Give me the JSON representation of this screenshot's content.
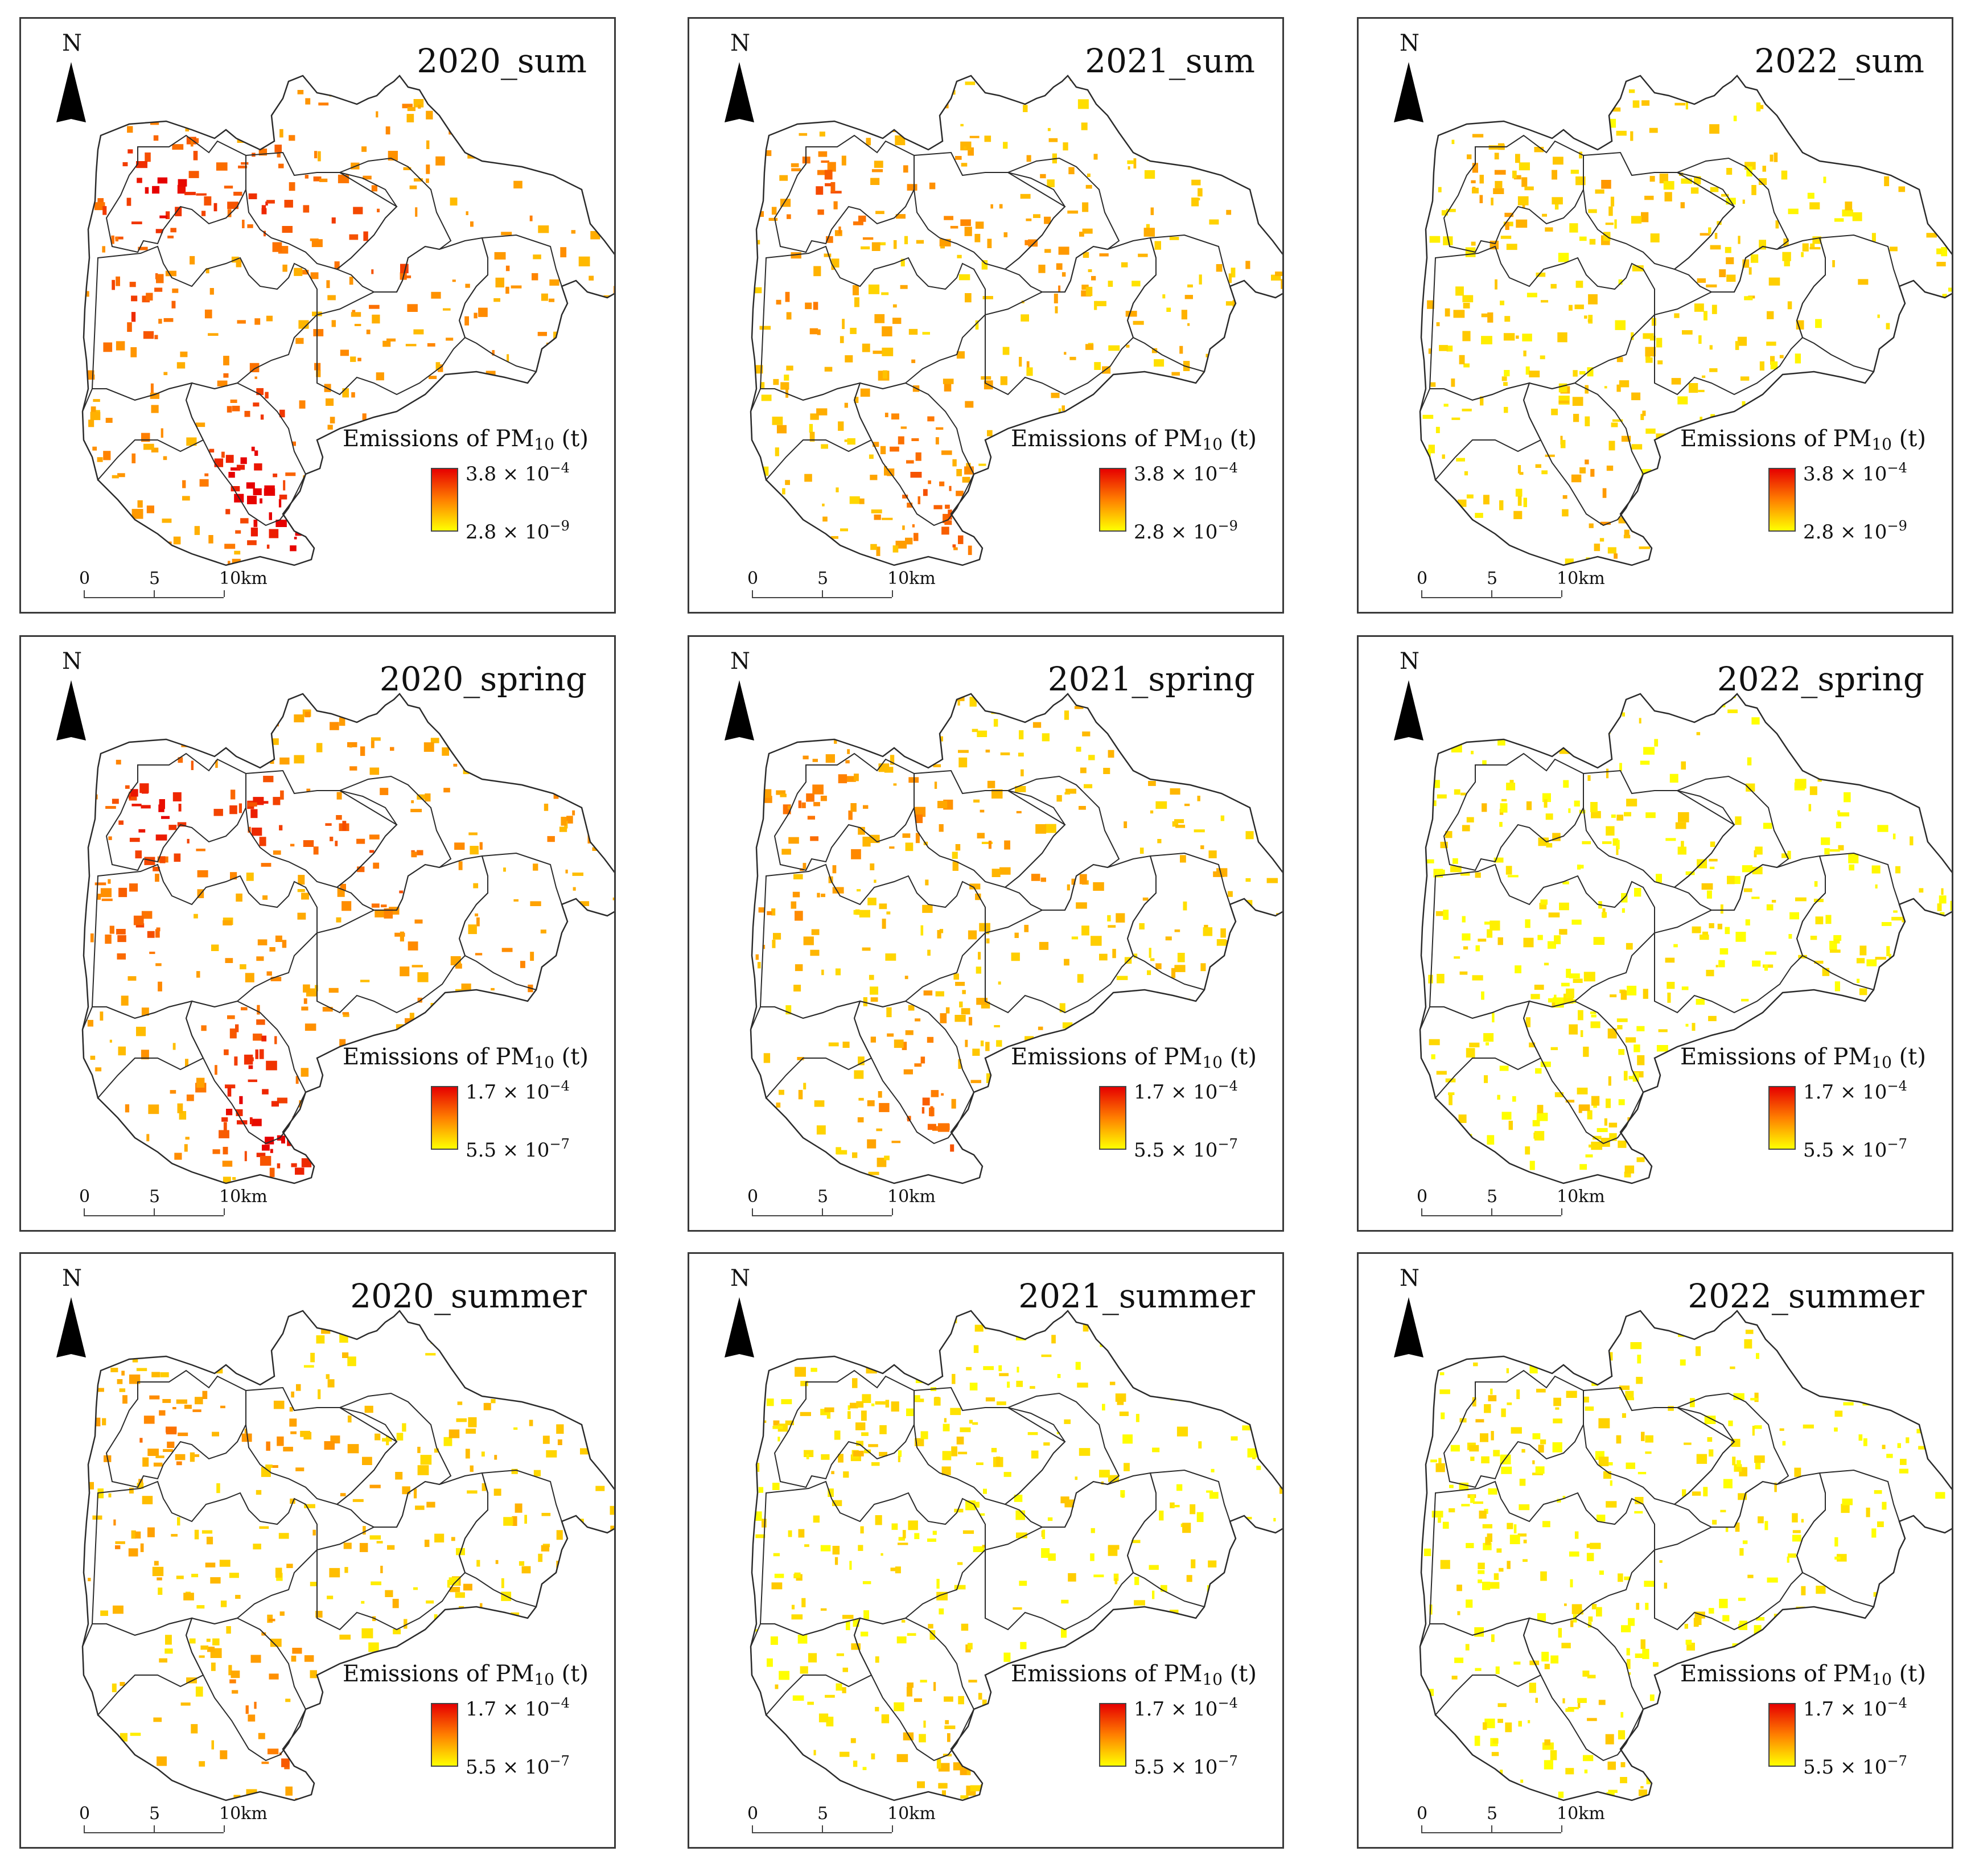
{
  "figure": {
    "legend_title_prefix": "Emissions of PM",
    "legend_title_subscript": "10",
    "legend_title_suffix": " (t)",
    "north_label": "N",
    "scale_labels": [
      "0",
      "5",
      "10km"
    ],
    "color_ramp": {
      "high": "#e60000",
      "mid": "#ff7f00",
      "low": "#ffff00"
    },
    "boundary_color": "#2b2b2b"
  },
  "panels": [
    {
      "title": "2020_sum",
      "year": "2020",
      "season": "sum",
      "legend_max": {
        "base": "3.8 × 10",
        "exp": "−4"
      },
      "legend_min": {
        "base": "2.8 × 10",
        "exp": "−9"
      },
      "intensity": 0.92
    },
    {
      "title": "2021_sum",
      "year": "2021",
      "season": "sum",
      "legend_max": {
        "base": "3.8 × 10",
        "exp": "−4"
      },
      "legend_min": {
        "base": "2.8 × 10",
        "exp": "−9"
      },
      "intensity": 0.55
    },
    {
      "title": "2022_sum",
      "year": "2022",
      "season": "sum",
      "legend_max": {
        "base": "3.8 × 10",
        "exp": "−4"
      },
      "legend_min": {
        "base": "2.8 × 10",
        "exp": "−9"
      },
      "intensity": 0.3
    },
    {
      "title": "2020_spring",
      "year": "2020",
      "season": "spring",
      "legend_max": {
        "base": "1.7 × 10",
        "exp": "−4"
      },
      "legend_min": {
        "base": "5.5 × 10",
        "exp": "−7"
      },
      "intensity": 0.85
    },
    {
      "title": "2021_spring",
      "year": "2021",
      "season": "spring",
      "legend_max": {
        "base": "1.7 × 10",
        "exp": "−4"
      },
      "legend_min": {
        "base": "5.5 × 10",
        "exp": "−7"
      },
      "intensity": 0.5
    },
    {
      "title": "2022_spring",
      "year": "2022",
      "season": "spring",
      "legend_max": {
        "base": "1.7 × 10",
        "exp": "−4"
      },
      "legend_min": {
        "base": "5.5 × 10",
        "exp": "−7"
      },
      "intensity": 0.12
    },
    {
      "title": "2020_summer",
      "year": "2020",
      "season": "summer",
      "legend_max": {
        "base": "1.7 × 10",
        "exp": "−4"
      },
      "legend_min": {
        "base": "5.5 × 10",
        "exp": "−7"
      },
      "intensity": 0.45
    },
    {
      "title": "2021_summer",
      "year": "2021",
      "season": "summer",
      "legend_max": {
        "base": "1.7 × 10",
        "exp": "−4"
      },
      "legend_min": {
        "base": "5.5 × 10",
        "exp": "−7"
      },
      "intensity": 0.18
    },
    {
      "title": "2022_summer",
      "year": "2022",
      "season": "summer",
      "legend_max": {
        "base": "1.7 × 10",
        "exp": "−4"
      },
      "legend_min": {
        "base": "5.5 × 10",
        "exp": "−7"
      },
      "intensity": 0.12
    }
  ]
}
